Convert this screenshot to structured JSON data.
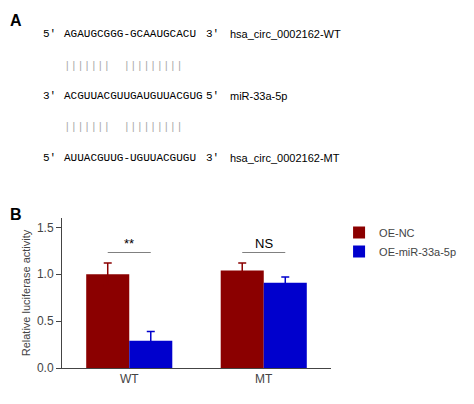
{
  "chart_data": {
    "type": "bar",
    "categories": [
      "WT",
      "MT"
    ],
    "series": [
      {
        "name": "OE-NC",
        "color": "#8B0000",
        "values": [
          1.0,
          1.04
        ],
        "errors": [
          0.12,
          0.08
        ]
      },
      {
        "name": "OE-miR-33a-5p",
        "color": "#0000CD",
        "values": [
          0.29,
          0.91
        ],
        "errors": [
          0.1,
          0.06
        ]
      }
    ],
    "ylabel": "Relative luciferase activity",
    "ylim": [
      0,
      1.6
    ],
    "yticks": [
      {
        "value": 0,
        "label": "0.0"
      },
      0.5,
      {
        "value": 1,
        "label": "1.0"
      },
      1.5
    ],
    "grid": false,
    "legend": "right",
    "annotations": [
      {
        "text": "A"
      },
      {
        "texts": [
          "5'",
          "AGAUGCGGG-GCAAUGCACU",
          "3'",
          "hsa_circ_0002162-WT"
        ]
      },
      {
        "texts": [
          "|||||||  |||||||||"
        ],
        "color": "#aaaaaa"
      },
      {
        "texts": [
          "3'",
          "ACGUUACGUUGAUGUUACGUG",
          "5'",
          "miR-33a-5p"
        ]
      },
      {
        "texts": [
          "|||||||  |||||||||"
        ],
        "color": "#aaaaaa"
      },
      {
        "texts": [
          "5'",
          "AUUACGUUG-UGUUACGUGU",
          "3'",
          "hsa_circ_0002162-MT"
        ]
      },
      {
        "text": "B"
      },
      {
        "text": "**",
        "category": "WT"
      },
      {
        "text": "NS",
        "category": "MT"
      }
    ]
  }
}
